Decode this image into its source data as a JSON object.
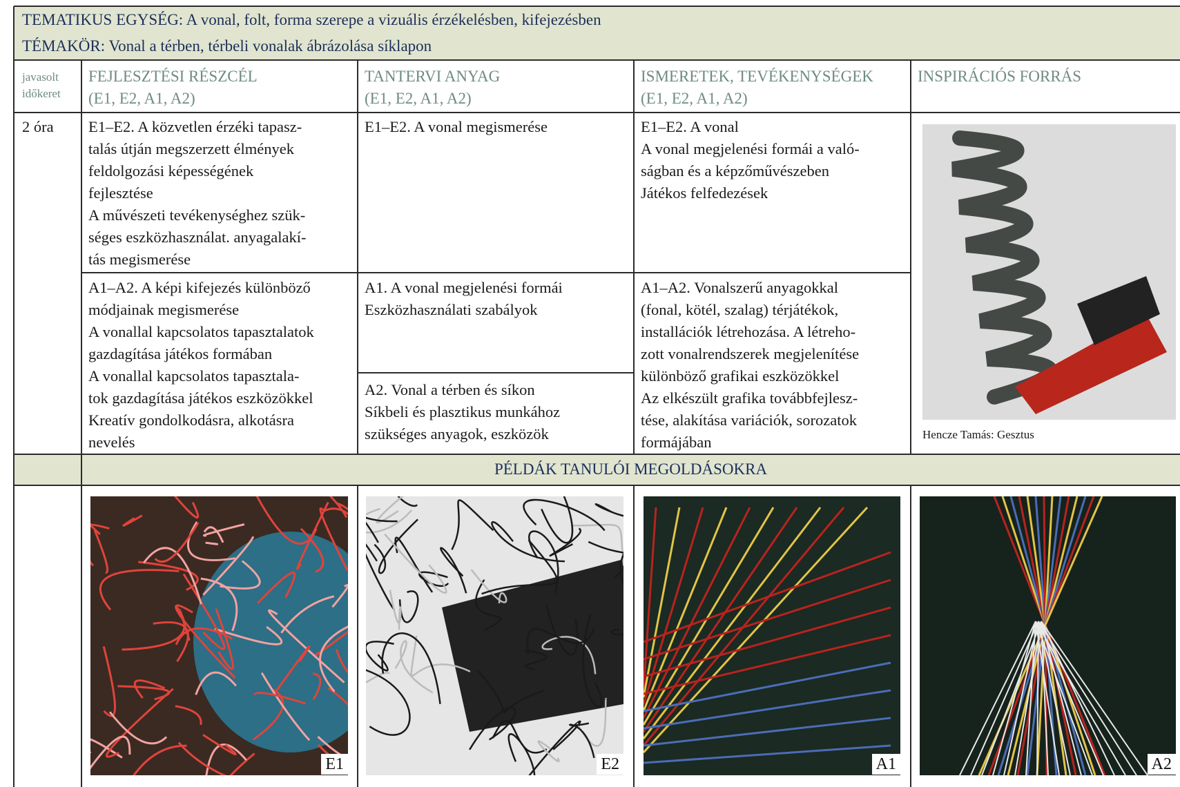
{
  "header": {
    "unit": "TEMATIKUS EGYSÉG: A vonal, folt, forma szerepe a vizuális érzékelésben, kifejezésben",
    "topic": "TÉMAKÖR: Vonal a térben, térbeli vonalak ábrázolása síklapon"
  },
  "table": {
    "columns": [
      {
        "title": "javasolt időkeret"
      },
      {
        "title": "FEJLESZTÉSI RÉSZCÉL",
        "subtitle": "(E1, E2, A1, A2)"
      },
      {
        "title": "TANTERVI ANYAG",
        "subtitle": "(E1, E2, A1, A2)"
      },
      {
        "title": "ISMERETEK, TEVÉKENYSÉGEK",
        "subtitle": "(E1, E2, A1, A2)"
      },
      {
        "title": "INSPIRÁCIÓS FORRÁS"
      }
    ],
    "time": "2 óra",
    "rows": [
      {
        "goal": [
          "E1–E2. A közvetlen érzéki tapasz-",
          "talás útján megszerzett élmények",
          "feldolgozási képességének",
          "fejlesztése",
          "A művészeti tevékenységhez szük-",
          "séges eszközhasználat. anyagalakí-",
          "tás megismerése"
        ],
        "curriculum": [
          [
            "E1–E2. A vonal megismerése"
          ]
        ],
        "activities": [
          "E1–E2. A vonal",
          "A vonal megjelenési formái a való-",
          "ságban és a képzőművészeben",
          "Játékos felfedezések"
        ]
      },
      {
        "goal": [
          "A1–A2. A képi kifejezés különböző",
          "módjainak megismerése",
          "A vonallal kapcsolatos tapasztalatok",
          "gazdagítása játékos formában",
          "A vonallal kapcsolatos tapasztala-",
          "tok gazdagítása játékos eszközökkel",
          "Kreatív gondolkodásra, alkotásra",
          "nevelés"
        ],
        "curriculum": [
          [
            "A1. A vonal megjelenési formái",
            "Eszközhasználati szabályok"
          ],
          [
            "A2.  Vonal a térben és síkon",
            "Síkbeli és plasztikus munkához",
            "szükséges anyagok, eszközök"
          ]
        ],
        "activities": [
          "A1–A2. Vonalszerű anyagokkal",
          "(fonal, kötél, szalag) térjátékok,",
          "installációk létrehozása. A létreho-",
          "zott vonalrendszerek megjelenítése",
          "különböző grafikai eszközökkel",
          "Az elkészült grafika továbbfejlesz-",
          "tése, alakítása variációk, sorozatok",
          "formájában"
        ]
      }
    ],
    "inspiration_caption": "Hencze Tamás: Gesztus"
  },
  "examples": {
    "heading": "PÉLDÁK TANULÓI MEGOLDÁSOKRA",
    "labels": [
      "E1",
      "E2",
      "A1",
      "A2"
    ]
  }
}
